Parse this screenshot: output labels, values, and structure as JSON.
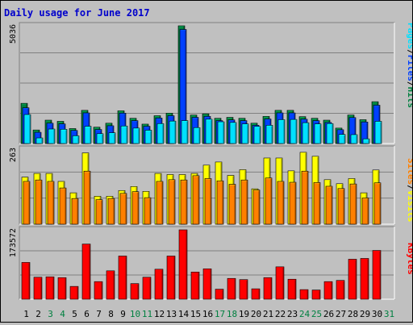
{
  "title": "Daily usage for June 2017",
  "colors": {
    "title": "#0000cc",
    "hits": "#008040",
    "files": "#0040ff",
    "pages": "#00e0ff",
    "visits": "#ffff00",
    "sites": "#ff8000",
    "kbytes": "#ff0000",
    "weekend": "#008040",
    "weekday": "#000000",
    "panel_bg": "#c0c0c0",
    "gridline": "#808080"
  },
  "chart_data": [
    {
      "type": "bar",
      "name": "hits-files-pages",
      "ymax_label": "5036",
      "ylim": [
        0,
        5036
      ],
      "categories": [
        "1",
        "2",
        "3",
        "4",
        "5",
        "6",
        "7",
        "8",
        "9",
        "10",
        "11",
        "12",
        "13",
        "14",
        "15",
        "16",
        "17",
        "18",
        "19",
        "20",
        "21",
        "22",
        "23",
        "24",
        "25",
        "26",
        "27",
        "28",
        "29",
        "30",
        "31"
      ],
      "legend": [
        "Pages",
        "Files",
        "Hits"
      ],
      "series": [
        {
          "name": "Hits",
          "values": [
            1720,
            580,
            1000,
            950,
            640,
            1420,
            700,
            870,
            1400,
            1080,
            830,
            1190,
            1300,
            5036,
            1220,
            1270,
            1080,
            1120,
            1080,
            870,
            1160,
            1420,
            1420,
            1150,
            1080,
            1000,
            660,
            1220,
            1020,
            1790,
            0
          ]
        },
        {
          "name": "Files",
          "values": [
            1530,
            480,
            870,
            840,
            560,
            1310,
            600,
            760,
            1300,
            980,
            740,
            1090,
            1190,
            4880,
            1120,
            1160,
            980,
            1010,
            980,
            780,
            1050,
            1310,
            1310,
            1040,
            980,
            900,
            590,
            1110,
            920,
            1640,
            0
          ]
        },
        {
          "name": "Pages",
          "values": [
            1240,
            240,
            620,
            610,
            330,
            740,
            420,
            460,
            750,
            660,
            570,
            850,
            960,
            980,
            680,
            1040,
            930,
            900,
            840,
            730,
            780,
            1020,
            1030,
            890,
            840,
            850,
            390,
            380,
            200,
            950,
            0
          ]
        }
      ]
    },
    {
      "type": "bar",
      "name": "visits-sites",
      "ymax_label": "263",
      "ylim": [
        0,
        263
      ],
      "categories": [
        "1",
        "2",
        "3",
        "4",
        "5",
        "6",
        "7",
        "8",
        "9",
        "10",
        "11",
        "12",
        "13",
        "14",
        "15",
        "16",
        "17",
        "18",
        "19",
        "20",
        "21",
        "22",
        "23",
        "24",
        "25",
        "26",
        "27",
        "28",
        "29",
        "30",
        "31"
      ],
      "legend": [
        "Sites",
        "Visits"
      ],
      "series": [
        {
          "name": "Visits",
          "values": [
            165,
            178,
            178,
            150,
            110,
            250,
            98,
            98,
            118,
            132,
            115,
            178,
            174,
            174,
            178,
            207,
            218,
            171,
            191,
            124,
            232,
            232,
            187,
            252,
            238,
            156,
            142,
            160,
            110,
            190,
            0
          ]
        },
        {
          "name": "Sites",
          "values": [
            150,
            155,
            150,
            127,
            90,
            186,
            86,
            90,
            108,
            114,
            93,
            150,
            156,
            155,
            170,
            160,
            152,
            140,
            155,
            120,
            162,
            150,
            147,
            186,
            146,
            133,
            125,
            141,
            92,
            145,
            0
          ]
        }
      ]
    },
    {
      "type": "bar",
      "name": "kbytes",
      "ymax_label": "173572",
      "ylim": [
        0,
        173572
      ],
      "categories": [
        "1",
        "2",
        "3",
        "4",
        "5",
        "6",
        "7",
        "8",
        "9",
        "10",
        "11",
        "12",
        "13",
        "14",
        "15",
        "16",
        "17",
        "18",
        "19",
        "20",
        "21",
        "22",
        "23",
        "24",
        "25",
        "26",
        "27",
        "28",
        "29",
        "30",
        "31"
      ],
      "legend": [
        "KBytes"
      ],
      "series": [
        {
          "name": "KBytes",
          "values": [
            92000,
            55000,
            56000,
            54000,
            32000,
            138000,
            44000,
            71000,
            108000,
            39000,
            55000,
            75000,
            108000,
            173572,
            68000,
            76000,
            25000,
            52000,
            49000,
            26000,
            54000,
            81000,
            50000,
            24000,
            23000,
            44000,
            47000,
            100000,
            102000,
            122000,
            0
          ]
        }
      ]
    }
  ],
  "x_labels": [
    {
      "label": "1",
      "weekend": false
    },
    {
      "label": "2",
      "weekend": false
    },
    {
      "label": "3",
      "weekend": true
    },
    {
      "label": "4",
      "weekend": true
    },
    {
      "label": "5",
      "weekend": false
    },
    {
      "label": "6",
      "weekend": false
    },
    {
      "label": "7",
      "weekend": false
    },
    {
      "label": "8",
      "weekend": false
    },
    {
      "label": "9",
      "weekend": false
    },
    {
      "label": "10",
      "weekend": true
    },
    {
      "label": "11",
      "weekend": true
    },
    {
      "label": "12",
      "weekend": false
    },
    {
      "label": "13",
      "weekend": false
    },
    {
      "label": "14",
      "weekend": false
    },
    {
      "label": "15",
      "weekend": false
    },
    {
      "label": "16",
      "weekend": false
    },
    {
      "label": "17",
      "weekend": true
    },
    {
      "label": "18",
      "weekend": true
    },
    {
      "label": "19",
      "weekend": false
    },
    {
      "label": "20",
      "weekend": false
    },
    {
      "label": "21",
      "weekend": false
    },
    {
      "label": "22",
      "weekend": false
    },
    {
      "label": "23",
      "weekend": false
    },
    {
      "label": "24",
      "weekend": true
    },
    {
      "label": "25",
      "weekend": true
    },
    {
      "label": "26",
      "weekend": false
    },
    {
      "label": "27",
      "weekend": false
    },
    {
      "label": "28",
      "weekend": false
    },
    {
      "label": "29",
      "weekend": false
    },
    {
      "label": "30",
      "weekend": false
    },
    {
      "label": "31",
      "weekend": true
    }
  ],
  "right_labels": {
    "panel1": [
      {
        "text": "Pages",
        "color": "#00e0ff"
      },
      {
        "text": "/",
        "color": "#000000"
      },
      {
        "text": "Files",
        "color": "#0040ff"
      },
      {
        "text": "/",
        "color": "#000000"
      },
      {
        "text": "Hits",
        "color": "#008040"
      }
    ],
    "panel2": [
      {
        "text": "Sites",
        "color": "#ff8000"
      },
      {
        "text": "/",
        "color": "#000000"
      },
      {
        "text": "Visits",
        "color": "#ffff00"
      }
    ],
    "panel3": [
      {
        "text": "KBytes",
        "color": "#ff0000"
      }
    ]
  }
}
